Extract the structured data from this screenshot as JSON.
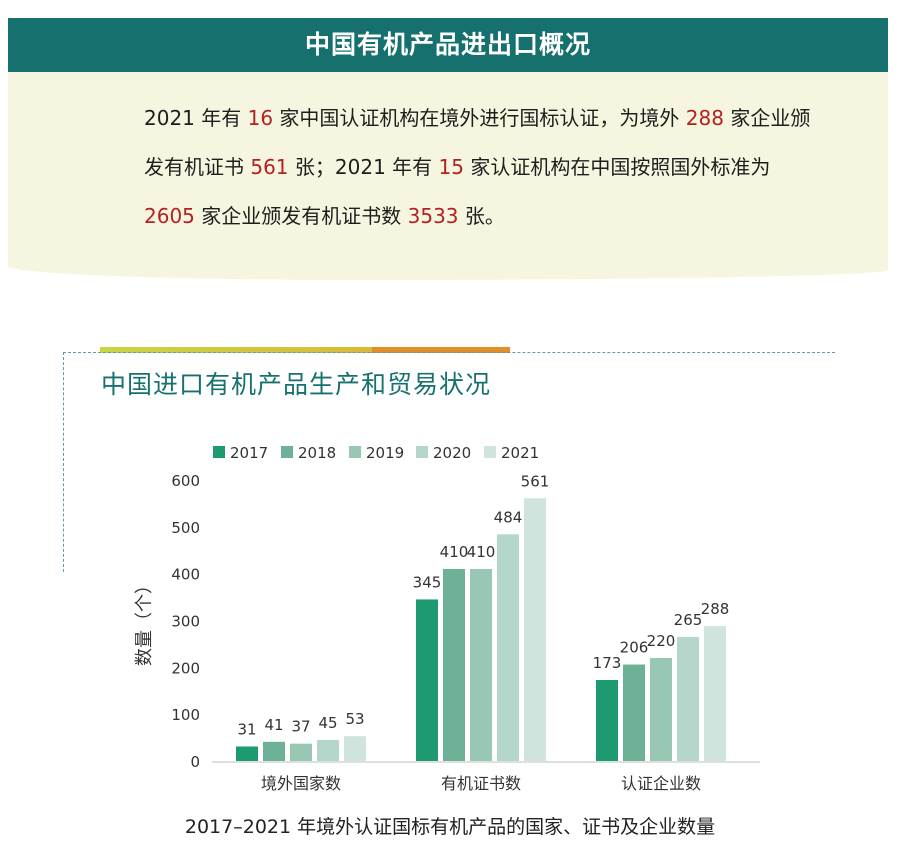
{
  "header": {
    "title": "中国有机产品进出口概况"
  },
  "summary": {
    "segments": [
      {
        "text": "2021 年有 ",
        "hl": false
      },
      {
        "text": "16",
        "hl": true
      },
      {
        "text": " 家中国认证机构在境外进行国标认证，为境外 ",
        "hl": false
      },
      {
        "text": "288",
        "hl": true
      },
      {
        "text": " 家企业颁发有机证书 ",
        "hl": false
      },
      {
        "text": "561",
        "hl": true
      },
      {
        "text": " 张；2021 年有 ",
        "hl": false
      },
      {
        "text": "15",
        "hl": true
      },
      {
        "text": " 家认证机构在中国按照国外标准为 ",
        "hl": false
      },
      {
        "text": "2605",
        "hl": true
      },
      {
        "text": " 家企业颁发有机证书数 ",
        "hl": false
      },
      {
        "text": "3533",
        "hl": true
      },
      {
        "text": " 张。",
        "hl": false
      }
    ]
  },
  "section": {
    "title": "中国进口有机产品生产和贸易状况"
  },
  "colors": {
    "header_bg": "#15706e",
    "highlight": "#b22222",
    "series": [
      "#1e9a73",
      "#6db297",
      "#98c8b4",
      "#b5d7cb",
      "#cfe4dc"
    ]
  },
  "chart_data": {
    "type": "bar",
    "title": "",
    "categories": [
      "境外国家数",
      "有机证书数",
      "认证企业数"
    ],
    "series": [
      {
        "name": "2017",
        "values": [
          31,
          345,
          173
        ]
      },
      {
        "name": "2018",
        "values": [
          41,
          410,
          206
        ]
      },
      {
        "name": "2019",
        "values": [
          37,
          410,
          220
        ]
      },
      {
        "name": "2020",
        "values": [
          45,
          484,
          265
        ]
      },
      {
        "name": "2021",
        "values": [
          53,
          561,
          288
        ]
      }
    ],
    "xlabel": "",
    "ylabel": "数量（个）",
    "ylim": [
      0,
      600
    ],
    "yticks": [
      0,
      100,
      200,
      300,
      400,
      500,
      600
    ],
    "grid": false,
    "legend": "top",
    "data_labels": true
  },
  "caption": "2017–2021 年境外认证国标有机产品的国家、证书及企业数量"
}
